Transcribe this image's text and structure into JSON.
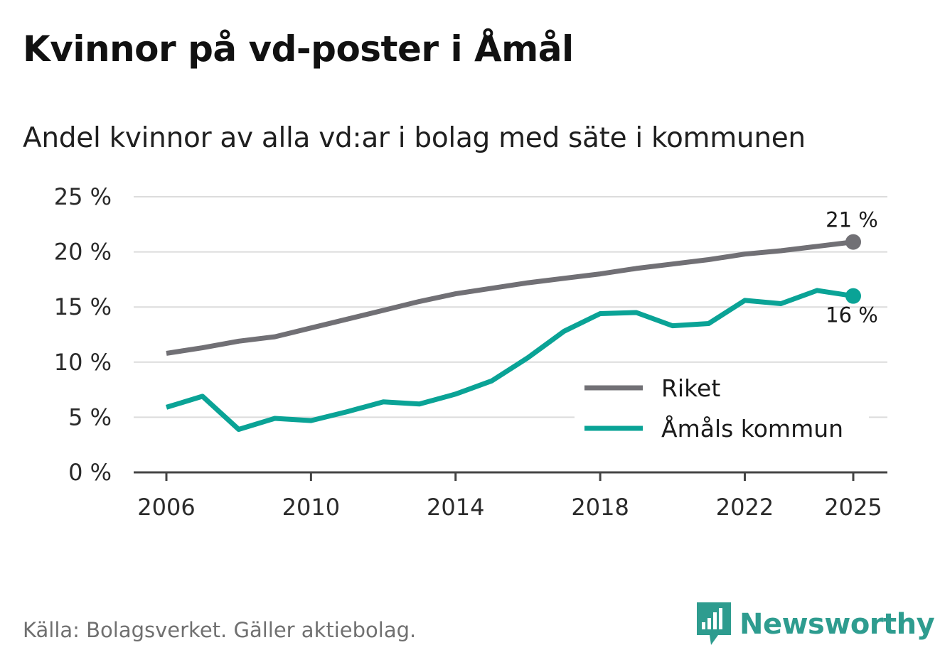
{
  "header": {
    "title": "Kvinnor på vd-poster i Åmål",
    "subtitle": "Andel kvinnor av alla vd:ar i bolag med säte i kommunen"
  },
  "footer": {
    "source": "Källa: Bolagsverket. Gäller aktiebolag.",
    "brand": "Newsworthy",
    "brand_icon": "newsworthy-logo-icon"
  },
  "colors": {
    "riket": "#717075",
    "amal": "#0aa396",
    "grid": "#dcdcdc",
    "axis": "#444444",
    "brand": "#2e9c8f"
  },
  "chart_data": {
    "type": "line",
    "title": "Kvinnor på vd-poster i Åmål",
    "subtitle": "Andel kvinnor av alla vd:ar i bolag med säte i kommunen",
    "xlabel": "",
    "ylabel": "",
    "ylim": [
      0,
      25
    ],
    "xlim": [
      2006,
      2025
    ],
    "grid": true,
    "legend_position": "lower-right",
    "y_ticks": [
      0,
      5,
      10,
      15,
      20,
      25
    ],
    "y_tick_labels": [
      "0 %",
      "5 %",
      "10 %",
      "15 %",
      "20 %",
      "25 %"
    ],
    "x_ticks": [
      2006,
      2010,
      2014,
      2018,
      2022,
      2025
    ],
    "x_tick_labels": [
      "2006",
      "2010",
      "2014",
      "2018",
      "2022",
      "2025"
    ],
    "x": [
      2006,
      2007,
      2008,
      2009,
      2010,
      2011,
      2012,
      2013,
      2014,
      2015,
      2016,
      2017,
      2018,
      2019,
      2020,
      2021,
      2022,
      2023,
      2024,
      2025
    ],
    "series": [
      {
        "name": "Riket",
        "color": "#717075",
        "values": [
          10.8,
          11.3,
          11.9,
          12.3,
          13.1,
          13.9,
          14.7,
          15.5,
          16.2,
          16.7,
          17.2,
          17.6,
          18.0,
          18.5,
          18.9,
          19.3,
          19.8,
          20.1,
          20.5,
          20.9
        ],
        "end_label": "21 %"
      },
      {
        "name": "Åmåls kommun",
        "color": "#0aa396",
        "values": [
          5.9,
          6.9,
          3.9,
          4.9,
          4.7,
          5.5,
          6.4,
          6.2,
          7.1,
          8.3,
          10.4,
          12.8,
          14.4,
          14.5,
          13.3,
          13.5,
          15.6,
          15.3,
          16.5,
          16.0
        ],
        "end_label": "16 %"
      }
    ]
  }
}
